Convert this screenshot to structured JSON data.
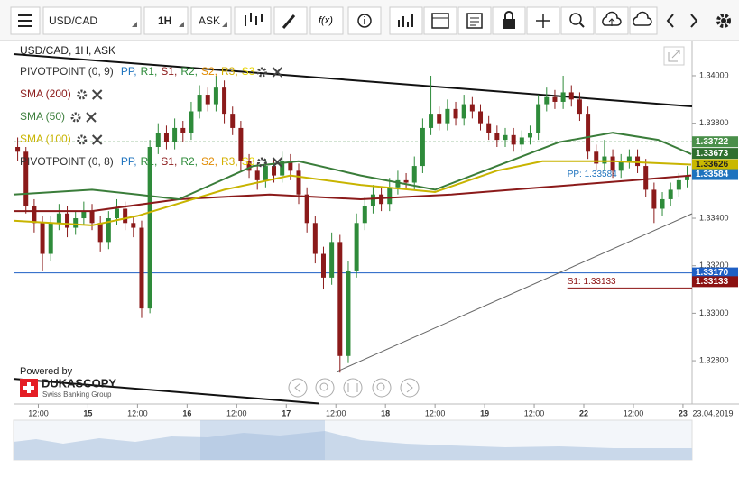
{
  "toolbar": {
    "symbol": "USD/CAD",
    "timeframe": "1H",
    "price_type": "ASK",
    "function_icon": "f(x)"
  },
  "chart_data": {
    "type": "candlestick",
    "title": "USD/CAD, 1H, ASK",
    "up_color": "#2e8b3a",
    "down_color": "#8b1a1a",
    "xlim": [
      0,
      164.2
    ],
    "xticks": [
      {
        "value": 6,
        "label": "12:00"
      },
      {
        "value": 18,
        "label": "15"
      },
      {
        "value": 30,
        "label": "12:00"
      },
      {
        "value": 42,
        "label": "16"
      },
      {
        "value": 54,
        "label": "12:00"
      },
      {
        "value": 66,
        "label": "17"
      },
      {
        "value": 78,
        "label": "12:00"
      },
      {
        "value": 90,
        "label": "18"
      },
      {
        "value": 102,
        "label": "12:00"
      },
      {
        "value": 114,
        "label": "19"
      },
      {
        "value": 126,
        "label": "12:00"
      },
      {
        "value": 138,
        "label": "22"
      },
      {
        "value": 150,
        "label": "12:00"
      },
      {
        "value": 162,
        "label": "23"
      }
    ],
    "date_label": "23.04.2019",
    "ylim": [
      1.32618,
      1.34148
    ],
    "yticks": [
      {
        "value": 1.328,
        "label": "1.32800"
      },
      {
        "value": 1.33,
        "label": "1.33000"
      },
      {
        "value": 1.332,
        "label": "1.33200"
      },
      {
        "value": 1.334,
        "label": "1.33400"
      },
      {
        "value": 1.336,
        "label": "1.33600"
      },
      {
        "value": 1.338,
        "label": "1.33800"
      },
      {
        "value": 1.34,
        "label": "1.34000"
      }
    ],
    "x": [
      1,
      3,
      5,
      7,
      9,
      11,
      13,
      15,
      17,
      19,
      21,
      23,
      25,
      27,
      29,
      31,
      33,
      35,
      37,
      39,
      41,
      43,
      45,
      47,
      49,
      51,
      53,
      55,
      57,
      59,
      61,
      63,
      65,
      67,
      69,
      71,
      73,
      75,
      77,
      79,
      81,
      83,
      85,
      87,
      89,
      91,
      93,
      95,
      97,
      99,
      101,
      103,
      105,
      107,
      109,
      111,
      113,
      115,
      117,
      119,
      121,
      123,
      125,
      127,
      129,
      131,
      133,
      135,
      137,
      139,
      141,
      143,
      145,
      147,
      149,
      151,
      153,
      155,
      157,
      159,
      161,
      163
    ],
    "open": [
      1.337,
      1.3368,
      1.3345,
      1.3338,
      1.3325,
      1.3338,
      1.3342,
      1.3336,
      1.334,
      1.3343,
      1.3338,
      1.333,
      1.334,
      1.3344,
      1.3338,
      1.3336,
      1.3302,
      1.337,
      1.3376,
      1.3372,
      1.3378,
      1.3376,
      1.3385,
      1.3392,
      1.3388,
      1.3395,
      1.3384,
      1.3378,
      1.3364,
      1.336,
      1.3356,
      1.3362,
      1.3358,
      1.3364,
      1.336,
      1.335,
      1.3338,
      1.3325,
      1.3315,
      1.333,
      1.3282,
      1.3318,
      1.3338,
      1.3345,
      1.335,
      1.3346,
      1.3353,
      1.3356,
      1.3355,
      1.3362,
      1.3378,
      1.3384,
      1.338,
      1.3386,
      1.3382,
      1.3388,
      1.3385,
      1.338,
      1.3376,
      1.3373,
      1.3375,
      1.3371,
      1.3374,
      1.3376,
      1.3388,
      1.3391,
      1.3389,
      1.3393,
      1.339,
      1.3384,
      1.3368,
      1.3363,
      1.3366,
      1.336,
      1.3364,
      1.3366,
      1.3362,
      1.3352,
      1.3344,
      1.3348,
      1.3352,
      1.3356
    ],
    "high": [
      1.3374,
      1.337,
      1.3348,
      1.3341,
      1.3341,
      1.3346,
      1.3345,
      1.3343,
      1.3347,
      1.3346,
      1.3341,
      1.3343,
      1.3348,
      1.3347,
      1.3341,
      1.3339,
      1.3373,
      1.338,
      1.3379,
      1.3382,
      1.3381,
      1.3389,
      1.3396,
      1.3395,
      1.34,
      1.3398,
      1.3387,
      1.3381,
      1.3367,
      1.3363,
      1.3365,
      1.3365,
      1.3368,
      1.3367,
      1.3363,
      1.3353,
      1.3341,
      1.3328,
      1.3334,
      1.3333,
      1.3322,
      1.3342,
      1.3349,
      1.3354,
      1.3353,
      1.3357,
      1.336,
      1.3359,
      1.3366,
      1.3382,
      1.34,
      1.3387,
      1.339,
      1.3389,
      1.3392,
      1.3391,
      1.3388,
      1.3383,
      1.3379,
      1.3378,
      1.3378,
      1.3377,
      1.3379,
      1.3392,
      1.3395,
      1.3394,
      1.34,
      1.3396,
      1.3393,
      1.3387,
      1.3371,
      1.3373,
      1.3369,
      1.3367,
      1.3369,
      1.3369,
      1.3365,
      1.3355,
      1.3351,
      1.3355,
      1.3359,
      1.3362
    ],
    "low": [
      1.3364,
      1.3342,
      1.3334,
      1.3318,
      1.3322,
      1.3335,
      1.3332,
      1.3333,
      1.3337,
      1.3335,
      1.3326,
      1.3327,
      1.3337,
      1.3335,
      1.3332,
      1.3298,
      1.33,
      1.3367,
      1.3369,
      1.3369,
      1.3372,
      1.3373,
      1.3382,
      1.3385,
      1.3385,
      1.338,
      1.3375,
      1.336,
      1.3357,
      1.3352,
      1.3353,
      1.3355,
      1.3355,
      1.3356,
      1.3346,
      1.3334,
      1.3321,
      1.331,
      1.3312,
      1.3275,
      1.3279,
      1.3315,
      1.3335,
      1.3342,
      1.3343,
      1.3343,
      1.335,
      1.3352,
      1.3352,
      1.3359,
      1.3375,
      1.3377,
      1.3377,
      1.3379,
      1.3379,
      1.3382,
      1.3377,
      1.3373,
      1.337,
      1.337,
      1.3368,
      1.3368,
      1.3371,
      1.3373,
      1.3385,
      1.3386,
      1.3386,
      1.3387,
      1.3381,
      1.3365,
      1.336,
      1.336,
      1.3357,
      1.3357,
      1.3361,
      1.3359,
      1.3349,
      1.3338,
      1.3341,
      1.3345,
      1.3349,
      1.3353
    ],
    "close": [
      1.3368,
      1.3345,
      1.3338,
      1.3325,
      1.3338,
      1.3342,
      1.3336,
      1.334,
      1.3343,
      1.3338,
      1.333,
      1.334,
      1.3344,
      1.3338,
      1.3336,
      1.3302,
      1.337,
      1.3376,
      1.3372,
      1.3378,
      1.3376,
      1.3385,
      1.3392,
      1.3388,
      1.3395,
      1.3384,
      1.3378,
      1.3364,
      1.336,
      1.3356,
      1.3362,
      1.3358,
      1.3364,
      1.336,
      1.335,
      1.3338,
      1.3325,
      1.3315,
      1.333,
      1.3282,
      1.3318,
      1.3338,
      1.3345,
      1.335,
      1.3346,
      1.3353,
      1.3356,
      1.3355,
      1.3362,
      1.3378,
      1.3384,
      1.338,
      1.3386,
      1.3382,
      1.3388,
      1.3385,
      1.338,
      1.3376,
      1.3373,
      1.3375,
      1.3371,
      1.3374,
      1.3376,
      1.3388,
      1.3391,
      1.3389,
      1.3393,
      1.339,
      1.3384,
      1.3368,
      1.3363,
      1.3366,
      1.336,
      1.3364,
      1.3366,
      1.3362,
      1.3352,
      1.3344,
      1.3348,
      1.3352,
      1.3356,
      1.3358
    ],
    "indicators": [
      {
        "name": "PIVOTPOINT (0, 9)",
        "color": "#333333",
        "levels": [
          {
            "name": "PP,",
            "color": "#1e73be"
          },
          {
            "name": "R1,",
            "color": "#2e8b3a"
          },
          {
            "name": "S1,",
            "color": "#8b1a1a"
          },
          {
            "name": "R2,",
            "color": "#2e8b3a"
          },
          {
            "name": "S2,",
            "color": "#e08a00"
          },
          {
            "name": "R3,",
            "color": "#d4b000"
          },
          {
            "name": "S3",
            "color": "#e6d200"
          }
        ]
      },
      {
        "name": "SMA (200)",
        "color": "#8b1a1a"
      },
      {
        "name": "SMA (50)",
        "color": "#3a7d3a"
      },
      {
        "name": "SMA (100)",
        "color": "#c8b400"
      },
      {
        "name": "PIVOTPOINT (0, 8)",
        "color": "#333333",
        "levels": [
          {
            "name": "PP,",
            "color": "#1e73be"
          },
          {
            "name": "R1,",
            "color": "#2e8b3a"
          },
          {
            "name": "S1,",
            "color": "#8b1a1a"
          },
          {
            "name": "R2,",
            "color": "#2e8b3a"
          },
          {
            "name": "S2,",
            "color": "#e08a00"
          },
          {
            "name": "R3,",
            "color": "#d4b000"
          },
          {
            "name": "S3",
            "color": "#e6d200"
          }
        ]
      }
    ],
    "series": [
      {
        "name": "SMA (200)",
        "color": "#8b1a1a",
        "x": [
          0,
          19,
          40,
          62,
          84,
          106,
          128,
          150,
          164
        ],
        "values": [
          1.3343,
          1.3343,
          1.3348,
          1.335,
          1.3348,
          1.335,
          1.3353,
          1.3356,
          1.3358
        ]
      },
      {
        "name": "SMA (50)",
        "color": "#3a7d3a",
        "x": [
          0,
          19,
          30,
          40,
          58,
          69,
          84,
          102,
          117,
          132,
          145,
          156,
          164
        ],
        "values": [
          1.335,
          1.3352,
          1.335,
          1.3348,
          1.3362,
          1.3364,
          1.3358,
          1.3352,
          1.3362,
          1.3372,
          1.3376,
          1.3373,
          1.3367
        ]
      },
      {
        "name": "SMA (100)",
        "color": "#c8b400",
        "x": [
          0,
          19,
          30,
          51,
          67,
          84,
          102,
          117,
          128,
          145,
          164
        ],
        "values": [
          1.3339,
          1.3337,
          1.3341,
          1.3352,
          1.3358,
          1.3354,
          1.3351,
          1.336,
          1.3364,
          1.3364,
          1.33626
        ]
      }
    ],
    "trend_lines": [
      {
        "color": "#111111",
        "width": 2,
        "x": [
          0,
          164.2
        ],
        "values": [
          1.34091,
          1.33871
        ]
      },
      {
        "color": "#111111",
        "width": 2,
        "x": [
          0,
          74
        ],
        "values": [
          1.32724,
          1.3262
        ]
      },
      {
        "color": "#666666",
        "width": 1,
        "x": [
          78.2,
          164.2
        ],
        "values": [
          1.32754,
          1.33419
        ]
      }
    ],
    "price_labels": [
      {
        "value": 1.33722,
        "label": "1.33722",
        "color": "#4a8f4a",
        "text_color": "#ffffff",
        "line": "dashed"
      },
      {
        "value": 1.33673,
        "label": "1.33673",
        "color": "#2f6f2f",
        "text_color": "#ffffff",
        "line": "none"
      },
      {
        "value": 1.33626,
        "label": "1.33626",
        "color": "#c9b800",
        "text_color": "#222222",
        "line": "none"
      },
      {
        "value": 1.33584,
        "label": "1.33584",
        "color": "#1e73be",
        "text_color": "#ffffff",
        "line": "none"
      },
      {
        "value": 1.3317,
        "label": "1.33170",
        "color": "#1e5fc4",
        "text_color": "#ffffff",
        "line": "solid"
      },
      {
        "value": 1.33133,
        "label": "1.33133",
        "color": "#8b1111",
        "text_color": "#ffffff",
        "line": "none"
      }
    ],
    "annotations": [
      {
        "text": "PP: 1.33584",
        "value": 1.33584,
        "x": 134,
        "color": "#1e73be"
      },
      {
        "text": "S1: 1.33133",
        "value": 1.33133,
        "x": 134,
        "color": "#8b1111"
      }
    ],
    "branding": {
      "powered_by": "Powered by",
      "name": "DUKASCOPY",
      "tagline": "Swiss Banking Group"
    }
  }
}
